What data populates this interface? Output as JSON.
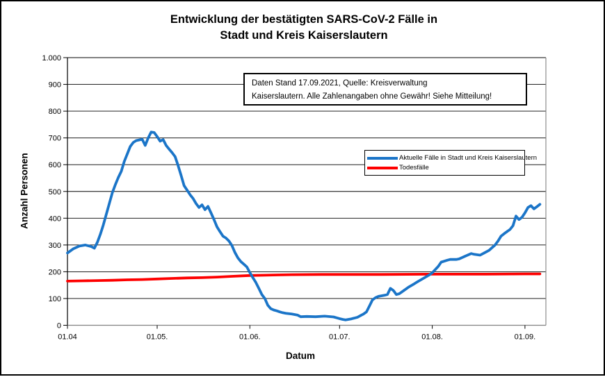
{
  "figure": {
    "title_line1": "Entwicklung der bestätigten SARS-CoV-2 Fälle in",
    "title_line2": "Stadt und Kreis Kaiserslautern"
  },
  "annotation": {
    "line1": "Daten Stand 17.09.2021, Quelle: Kreisverwaltung",
    "line2": "Kaiserslautern. Alle Zahlenangaben ohne Gewähr! Siehe Mitteilung!"
  },
  "axes": {
    "y_title": "Anzahl Personen",
    "x_title": "Datum",
    "y_tick_labels": [
      "0",
      "100",
      "200",
      "300",
      "400",
      "500",
      "600",
      "700",
      "800",
      "900",
      "1.000"
    ],
    "x_ticks": [
      {
        "label": "01.04",
        "day": 0
      },
      {
        "label": "01.05.",
        "day": 30
      },
      {
        "label": "01.06.",
        "day": 61
      },
      {
        "label": "01.07.",
        "day": 91
      },
      {
        "label": "01.08.",
        "day": 122
      },
      {
        "label": "01.09.",
        "day": 153
      }
    ]
  },
  "chart_data": {
    "type": "line",
    "title": "Entwicklung der bestätigten SARS-CoV-2 Fälle in Stadt und Kreis Kaiserslautern",
    "xlabel": "Datum",
    "ylabel": "Anzahl Personen",
    "ylim": [
      0,
      1000
    ],
    "y_tick_step": 100,
    "x_unit": "days since 01.04.2021",
    "x_range_days": [
      0,
      158
    ],
    "grid": "horizontal",
    "legend_position": "inside-right",
    "series": [
      {
        "name": "Aktuelle Fälle in Stadt und Kreis Kaiserslautern",
        "color": "#1B75C8",
        "points": [
          [
            0,
            270
          ],
          [
            2,
            286
          ],
          [
            4,
            296
          ],
          [
            6,
            300
          ],
          [
            8,
            294
          ],
          [
            9,
            288
          ],
          [
            10,
            310
          ],
          [
            11,
            340
          ],
          [
            12,
            375
          ],
          [
            13,
            415
          ],
          [
            14,
            455
          ],
          [
            15,
            495
          ],
          [
            16,
            525
          ],
          [
            17,
            552
          ],
          [
            18,
            575
          ],
          [
            19,
            612
          ],
          [
            20,
            640
          ],
          [
            21,
            668
          ],
          [
            22,
            683
          ],
          [
            23,
            690
          ],
          [
            25,
            695
          ],
          [
            26,
            672
          ],
          [
            27,
            700
          ],
          [
            28,
            722
          ],
          [
            29,
            720
          ],
          [
            30,
            705
          ],
          [
            31,
            688
          ],
          [
            32,
            694
          ],
          [
            33,
            672
          ],
          [
            34,
            658
          ],
          [
            35,
            645
          ],
          [
            36,
            630
          ],
          [
            37,
            597
          ],
          [
            38,
            560
          ],
          [
            39,
            522
          ],
          [
            40,
            505
          ],
          [
            41,
            488
          ],
          [
            42,
            474
          ],
          [
            43,
            455
          ],
          [
            44,
            440
          ],
          [
            45,
            450
          ],
          [
            46,
            432
          ],
          [
            47,
            444
          ],
          [
            48,
            420
          ],
          [
            49,
            395
          ],
          [
            50,
            368
          ],
          [
            51,
            350
          ],
          [
            52,
            333
          ],
          [
            53,
            326
          ],
          [
            54,
            315
          ],
          [
            55,
            298
          ],
          [
            56,
            272
          ],
          [
            57,
            252
          ],
          [
            58,
            238
          ],
          [
            59,
            228
          ],
          [
            60,
            218
          ],
          [
            61,
            197
          ],
          [
            62,
            178
          ],
          [
            63,
            160
          ],
          [
            64,
            138
          ],
          [
            65,
            115
          ],
          [
            66,
            100
          ],
          [
            67,
            75
          ],
          [
            68,
            62
          ],
          [
            69,
            57
          ],
          [
            70,
            54
          ],
          [
            71,
            50
          ],
          [
            72,
            47
          ],
          [
            73,
            45
          ],
          [
            75,
            42
          ],
          [
            77,
            38
          ],
          [
            78,
            32
          ],
          [
            80,
            33
          ],
          [
            83,
            32
          ],
          [
            86,
            34
          ],
          [
            89,
            31
          ],
          [
            90,
            28
          ],
          [
            91,
            25
          ],
          [
            92,
            22
          ],
          [
            93,
            20
          ],
          [
            95,
            24
          ],
          [
            97,
            30
          ],
          [
            98,
            36
          ],
          [
            99,
            42
          ],
          [
            100,
            50
          ],
          [
            101,
            72
          ],
          [
            102,
            95
          ],
          [
            103,
            103
          ],
          [
            104,
            108
          ],
          [
            106,
            112
          ],
          [
            107,
            115
          ],
          [
            108,
            138
          ],
          [
            109,
            130
          ],
          [
            110,
            115
          ],
          [
            111,
            118
          ],
          [
            112,
            126
          ],
          [
            114,
            142
          ],
          [
            116,
            155
          ],
          [
            117,
            162
          ],
          [
            119,
            175
          ],
          [
            121,
            188
          ],
          [
            122,
            196
          ],
          [
            124,
            220
          ],
          [
            125,
            236
          ],
          [
            127,
            243
          ],
          [
            128,
            246
          ],
          [
            130,
            246
          ],
          [
            131,
            248
          ],
          [
            133,
            258
          ],
          [
            135,
            268
          ],
          [
            136,
            265
          ],
          [
            138,
            262
          ],
          [
            139,
            268
          ],
          [
            141,
            280
          ],
          [
            142,
            290
          ],
          [
            143,
            300
          ],
          [
            144,
            315
          ],
          [
            145,
            333
          ],
          [
            146,
            342
          ],
          [
            147,
            350
          ],
          [
            148,
            358
          ],
          [
            149,
            372
          ],
          [
            150,
            408
          ],
          [
            151,
            395
          ],
          [
            152,
            403
          ],
          [
            153,
            420
          ],
          [
            154,
            440
          ],
          [
            155,
            447
          ],
          [
            156,
            435
          ],
          [
            157,
            443
          ],
          [
            158,
            452
          ]
        ]
      },
      {
        "name": "Todesfälle",
        "color": "#FE0000",
        "points": [
          [
            0,
            165
          ],
          [
            5,
            166
          ],
          [
            10,
            167
          ],
          [
            15,
            168
          ],
          [
            20,
            170
          ],
          [
            25,
            171
          ],
          [
            30,
            173
          ],
          [
            35,
            175
          ],
          [
            40,
            177
          ],
          [
            45,
            178
          ],
          [
            50,
            180
          ],
          [
            55,
            183
          ],
          [
            61,
            186
          ],
          [
            66,
            187
          ],
          [
            70,
            188
          ],
          [
            75,
            189
          ],
          [
            85,
            190
          ],
          [
            91,
            190
          ],
          [
            105,
            190
          ],
          [
            122,
            191
          ],
          [
            140,
            191
          ],
          [
            153,
            192
          ],
          [
            158,
            192
          ]
        ]
      }
    ]
  }
}
